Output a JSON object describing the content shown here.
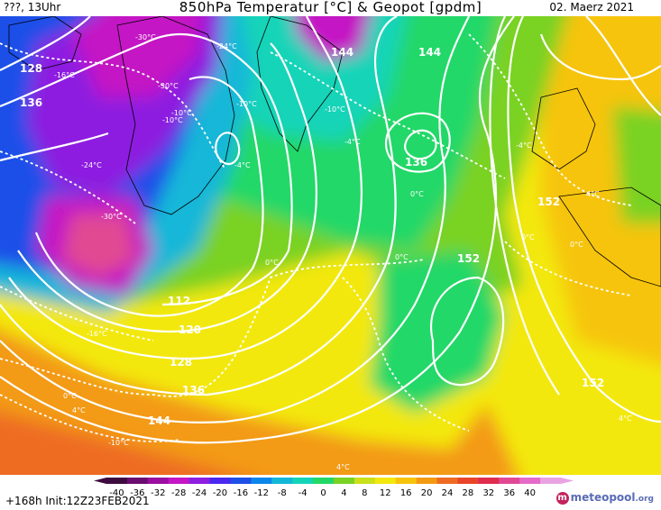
{
  "header": {
    "left": "???, 13Uhr",
    "title": "850hPa Temperatur [°C] & Geopot [gpdm]",
    "date": "02. Maerz 2021"
  },
  "footer": {
    "run": "+168h Init:12Z23FEB2021",
    "brand_main": "meteopool",
    "brand_tld": ".org"
  },
  "colorbar": {
    "ticks": [
      "-40",
      "-36",
      "-32",
      "-28",
      "-24",
      "-20",
      "-16",
      "-12",
      "-8",
      "-4",
      "0",
      "4",
      "8",
      "12",
      "16",
      "20",
      "24",
      "28",
      "32",
      "36",
      "40"
    ],
    "colors": [
      "#3d0b3f",
      "#6a0d6f",
      "#9a0ea0",
      "#c416c4",
      "#8d1fe0",
      "#4b28ef",
      "#1e4fe8",
      "#0c86ea",
      "#13b7d8",
      "#14d4b8",
      "#24d867",
      "#7ad224",
      "#c9e01a",
      "#f3e80e",
      "#f6c40d",
      "#f39a12",
      "#ee6c22",
      "#e9452a",
      "#e02d4d",
      "#e14893",
      "#e46bc8",
      "#e9a3e2"
    ]
  },
  "map": {
    "geopot_labels": [
      "128",
      "136",
      "144",
      "144",
      "136",
      "152",
      "152",
      "152",
      "112",
      "120",
      "128",
      "136",
      "144"
    ],
    "temp_labels": [
      "-30°C",
      "-24°C",
      "-10°C",
      "-10°C",
      "-16°C",
      "-24°C",
      "-30°C",
      "-16°C",
      "0°C",
      "0°C",
      "0°C",
      "-4°C",
      "0°C",
      "4°C",
      "0°C",
      "4°C",
      "4°C",
      "-10°C",
      "-10°C",
      "-4°C",
      "0°C",
      "-4°C",
      "4°C",
      "-30°C",
      "-10°C"
    ]
  }
}
